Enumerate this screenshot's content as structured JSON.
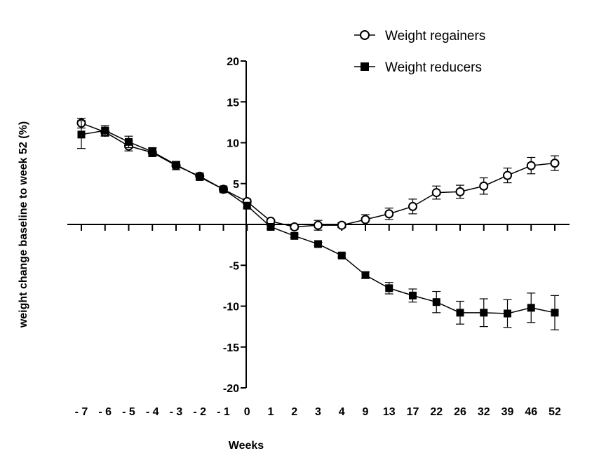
{
  "chart_data": {
    "type": "line",
    "title": "",
    "xlabel": "Weeks",
    "ylabel": "weight change baseline to week 52 (%)",
    "categories": [
      "- 7",
      "- 6",
      "- 5",
      "- 4",
      "- 3",
      "- 2",
      "- 1",
      "0",
      "1",
      "2",
      "3",
      "4",
      "9",
      "13",
      "17",
      "22",
      "26",
      "32",
      "39",
      "46",
      "52"
    ],
    "ylim": [
      -20,
      20
    ],
    "yticks": [
      "-20",
      "-15",
      "-10",
      "-5",
      "5",
      "10",
      "15",
      "20"
    ],
    "ytick_values": [
      -20,
      -15,
      -10,
      -5,
      5,
      10,
      15,
      20
    ],
    "legend_position": "top-right",
    "grid": false,
    "series": [
      {
        "name": "Weight regainers",
        "marker": "open-circle",
        "color": "#000000",
        "values": [
          12.4,
          11.3,
          9.6,
          8.8,
          7.2,
          5.9,
          4.3,
          2.8,
          0.4,
          -0.3,
          -0.1,
          -0.1,
          0.6,
          1.3,
          2.2,
          3.9,
          4.0,
          4.7,
          6.0,
          7.2,
          7.5
        ],
        "error": [
          0.6,
          0.5,
          0.6,
          0.5,
          0.5,
          0.4,
          0.3,
          0.3,
          0.2,
          0.3,
          0.6,
          0.3,
          0.6,
          0.7,
          0.9,
          0.8,
          0.8,
          1.0,
          0.9,
          1.0,
          0.9
        ]
      },
      {
        "name": "Weight reducers",
        "marker": "filled-square",
        "color": "#000000",
        "values": [
          11.0,
          11.5,
          10.1,
          8.9,
          7.3,
          5.8,
          4.3,
          2.3,
          -0.3,
          -1.4,
          -2.4,
          -3.8,
          -6.2,
          -7.8,
          -8.7,
          -9.5,
          -10.8,
          -10.8,
          -10.9,
          -10.2,
          -10.8
        ],
        "error": [
          1.7,
          0.6,
          0.7,
          0.5,
          0.3,
          0.3,
          0.2,
          0.3,
          0.2,
          0.2,
          0.2,
          0.2,
          0.4,
          0.7,
          0.8,
          1.3,
          1.4,
          1.7,
          1.7,
          1.8,
          2.1
        ]
      }
    ]
  }
}
